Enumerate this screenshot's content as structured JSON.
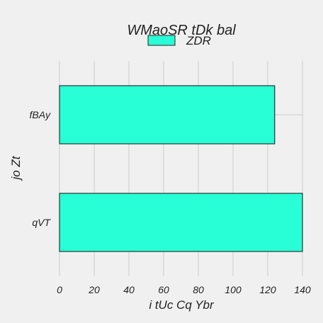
{
  "chart_data": {
    "type": "bar",
    "orientation": "horizontal",
    "title": "WMaoSR tDk bal",
    "xlabel": "i tUc Cq Ybr",
    "ylabel": "jo Zt",
    "categories": [
      "fBAy",
      "qVT"
    ],
    "series": [
      {
        "name": "ZDR",
        "values": [
          124,
          140
        ],
        "color": "#29ffd6"
      }
    ],
    "xlim": [
      0,
      140
    ],
    "xticks": [
      0,
      20,
      40,
      60,
      80,
      100,
      120,
      140
    ],
    "grid": true,
    "legend": "top-center"
  }
}
